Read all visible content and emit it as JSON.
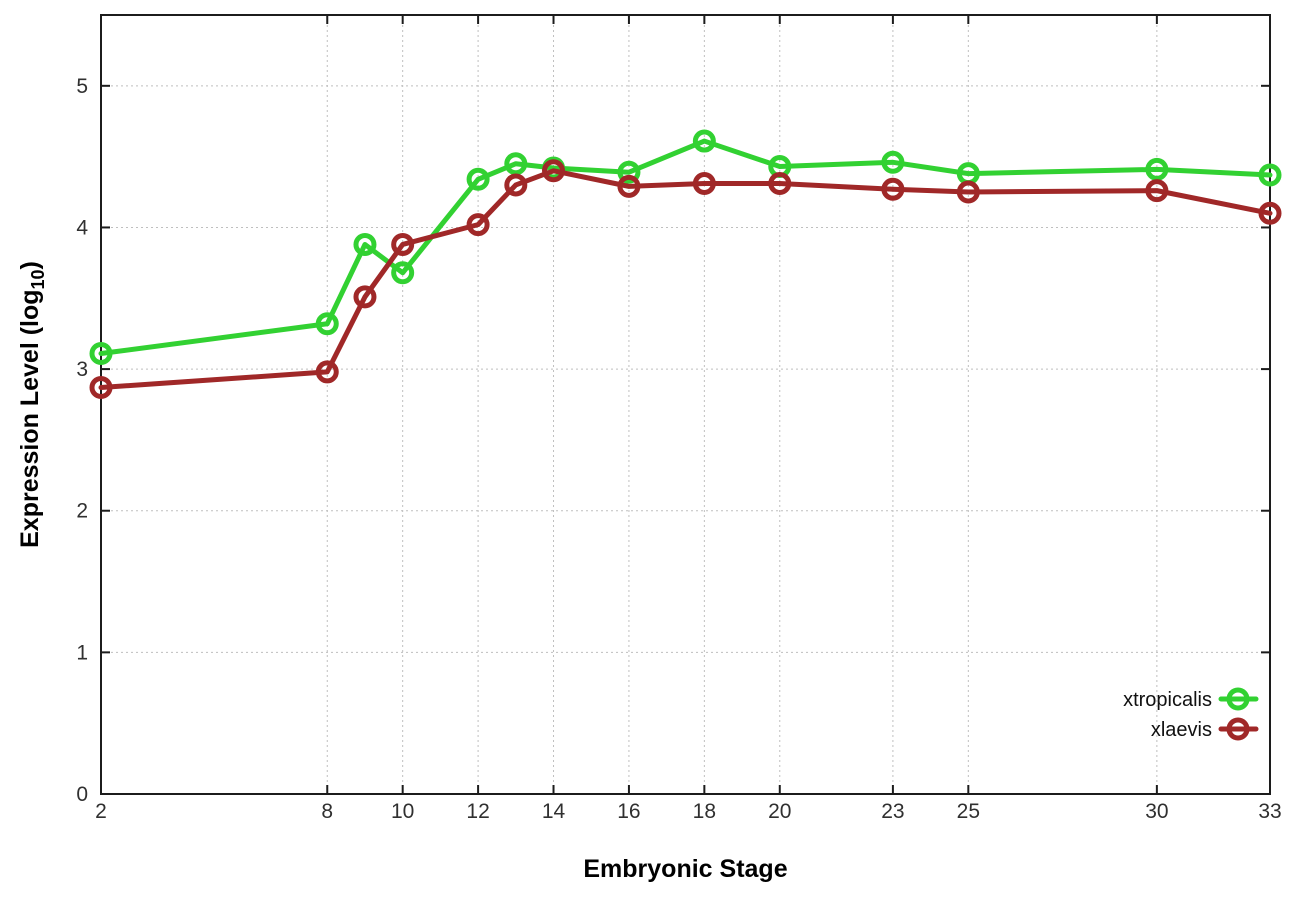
{
  "chart_data": {
    "type": "line",
    "title": "",
    "xlabel": "Embryonic Stage",
    "ylabel": "Expression Level (log₁₀)",
    "ylabel_parts": {
      "main": "Expression Level (log",
      "sub": "10",
      "end": ")"
    },
    "x": [
      2,
      8,
      9,
      10,
      12,
      13,
      14,
      16,
      18,
      20,
      23,
      25,
      30,
      33
    ],
    "series": [
      {
        "name": "xtropicalis",
        "color": "#32d132",
        "values": [
          3.11,
          3.32,
          3.88,
          3.68,
          4.34,
          4.45,
          4.42,
          4.39,
          4.61,
          4.43,
          4.46,
          4.38,
          4.41,
          4.37
        ]
      },
      {
        "name": "xlaevis",
        "color": "#a02828",
        "values": [
          2.87,
          2.98,
          3.51,
          3.88,
          4.02,
          4.3,
          4.4,
          4.29,
          4.31,
          4.31,
          4.27,
          4.25,
          4.26,
          4.1
        ]
      }
    ],
    "x_ticks": [
      2,
      8,
      10,
      12,
      14,
      16,
      18,
      20,
      23,
      25,
      30,
      33
    ],
    "y_ticks": [
      0,
      1,
      2,
      3,
      4,
      5
    ],
    "xlim": [
      2,
      33
    ],
    "ylim": [
      0,
      5.5
    ],
    "grid": true,
    "marker": "open-circle",
    "legend_position": "bottom-right",
    "legend": [
      "xtropicalis",
      "xlaevis"
    ],
    "colors": {
      "background": "#ffffff",
      "border": "#1c1c1c",
      "grid": "#bfbfbf",
      "text": "#303030"
    }
  }
}
